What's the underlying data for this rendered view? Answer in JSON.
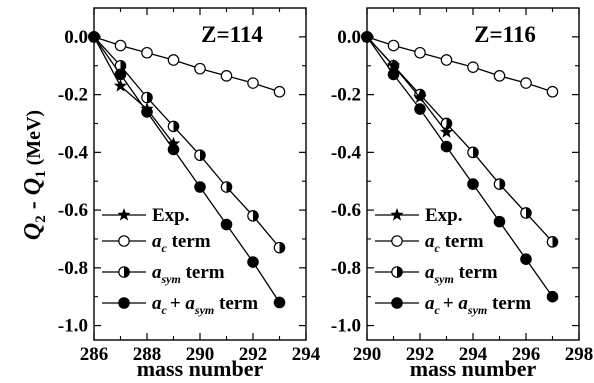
{
  "ylabel": {
    "main": "Q",
    "sub2": "2",
    "dash": " - ",
    "main2": "Q",
    "sub1": "1",
    "unit": " (MeV)"
  },
  "chart_data": [
    {
      "type": "line",
      "title": "Z=114",
      "xlabel": "mass number",
      "xlim": [
        286,
        294
      ],
      "ylim": [
        -1.05,
        0.1
      ],
      "xticks": [
        286,
        288,
        290,
        292,
        294
      ],
      "yticks": [
        0.0,
        -0.2,
        -0.4,
        -0.6,
        -0.8,
        -1.0
      ],
      "ytick_labels": [
        "0.0",
        "-0.2",
        "-0.4",
        "-0.6",
        "-0.8",
        "-1.0"
      ],
      "legend_position": "bottom-left",
      "series": [
        {
          "key": "exp",
          "marker": "star",
          "x": [
            286,
            287,
            288,
            289
          ],
          "y": [
            0.0,
            -0.17,
            -0.25,
            -0.37
          ]
        },
        {
          "key": "ac",
          "marker": "open-circle",
          "x": [
            286,
            287,
            288,
            289,
            290,
            291,
            292,
            293
          ],
          "y": [
            0.0,
            -0.03,
            -0.055,
            -0.08,
            -0.11,
            -0.135,
            -0.16,
            -0.19
          ]
        },
        {
          "key": "asym",
          "marker": "half-circle",
          "x": [
            286,
            287,
            288,
            289,
            290,
            291,
            292,
            293
          ],
          "y": [
            0.0,
            -0.1,
            -0.21,
            -0.31,
            -0.41,
            -0.52,
            -0.62,
            -0.73
          ]
        },
        {
          "key": "both",
          "marker": "filled-circle",
          "x": [
            286,
            287,
            288,
            289,
            290,
            291,
            292,
            293
          ],
          "y": [
            0.0,
            -0.13,
            -0.26,
            -0.39,
            -0.52,
            -0.65,
            -0.78,
            -0.92
          ]
        }
      ]
    },
    {
      "type": "line",
      "title": "Z=116",
      "xlabel": "mass number",
      "xlim": [
        290,
        298
      ],
      "ylim": [
        -1.05,
        0.1
      ],
      "xticks": [
        290,
        292,
        294,
        296,
        298
      ],
      "yticks": [
        0.0,
        -0.2,
        -0.4,
        -0.6,
        -0.8,
        -1.0
      ],
      "ytick_labels": [
        "0.0",
        "-0.2",
        "-0.4",
        "-0.6",
        "-0.8",
        "-1.0"
      ],
      "legend_position": "bottom-left",
      "series": [
        {
          "key": "exp",
          "marker": "star",
          "x": [
            290,
            291,
            292,
            293
          ],
          "y": [
            0.0,
            -0.1,
            -0.21,
            -0.33
          ]
        },
        {
          "key": "ac",
          "marker": "open-circle",
          "x": [
            290,
            291,
            292,
            293,
            294,
            295,
            296,
            297
          ],
          "y": [
            0.0,
            -0.03,
            -0.055,
            -0.08,
            -0.105,
            -0.135,
            -0.16,
            -0.19
          ]
        },
        {
          "key": "asym",
          "marker": "half-circle",
          "x": [
            290,
            291,
            292,
            293,
            294,
            295,
            296,
            297
          ],
          "y": [
            0.0,
            -0.1,
            -0.2,
            -0.3,
            -0.4,
            -0.51,
            -0.61,
            -0.71
          ]
        },
        {
          "key": "both",
          "marker": "filled-circle",
          "x": [
            290,
            291,
            292,
            293,
            294,
            295,
            296,
            297
          ],
          "y": [
            0.0,
            -0.13,
            -0.25,
            -0.38,
            -0.51,
            -0.64,
            -0.77,
            -0.9
          ]
        }
      ]
    }
  ],
  "legend": [
    {
      "key": "exp",
      "marker": "star",
      "text": "Exp."
    },
    {
      "key": "ac",
      "marker": "open-circle",
      "a": "a",
      "sub": "c",
      "rest": " term"
    },
    {
      "key": "asym",
      "marker": "half-circle",
      "a": "a",
      "sub": "sym",
      "rest": " term"
    },
    {
      "key": "both",
      "marker": "filled-circle",
      "a": "a",
      "sub": "c",
      "plus": "+ ",
      "a2": "a",
      "sub2": "sym",
      "rest": " term"
    }
  ]
}
